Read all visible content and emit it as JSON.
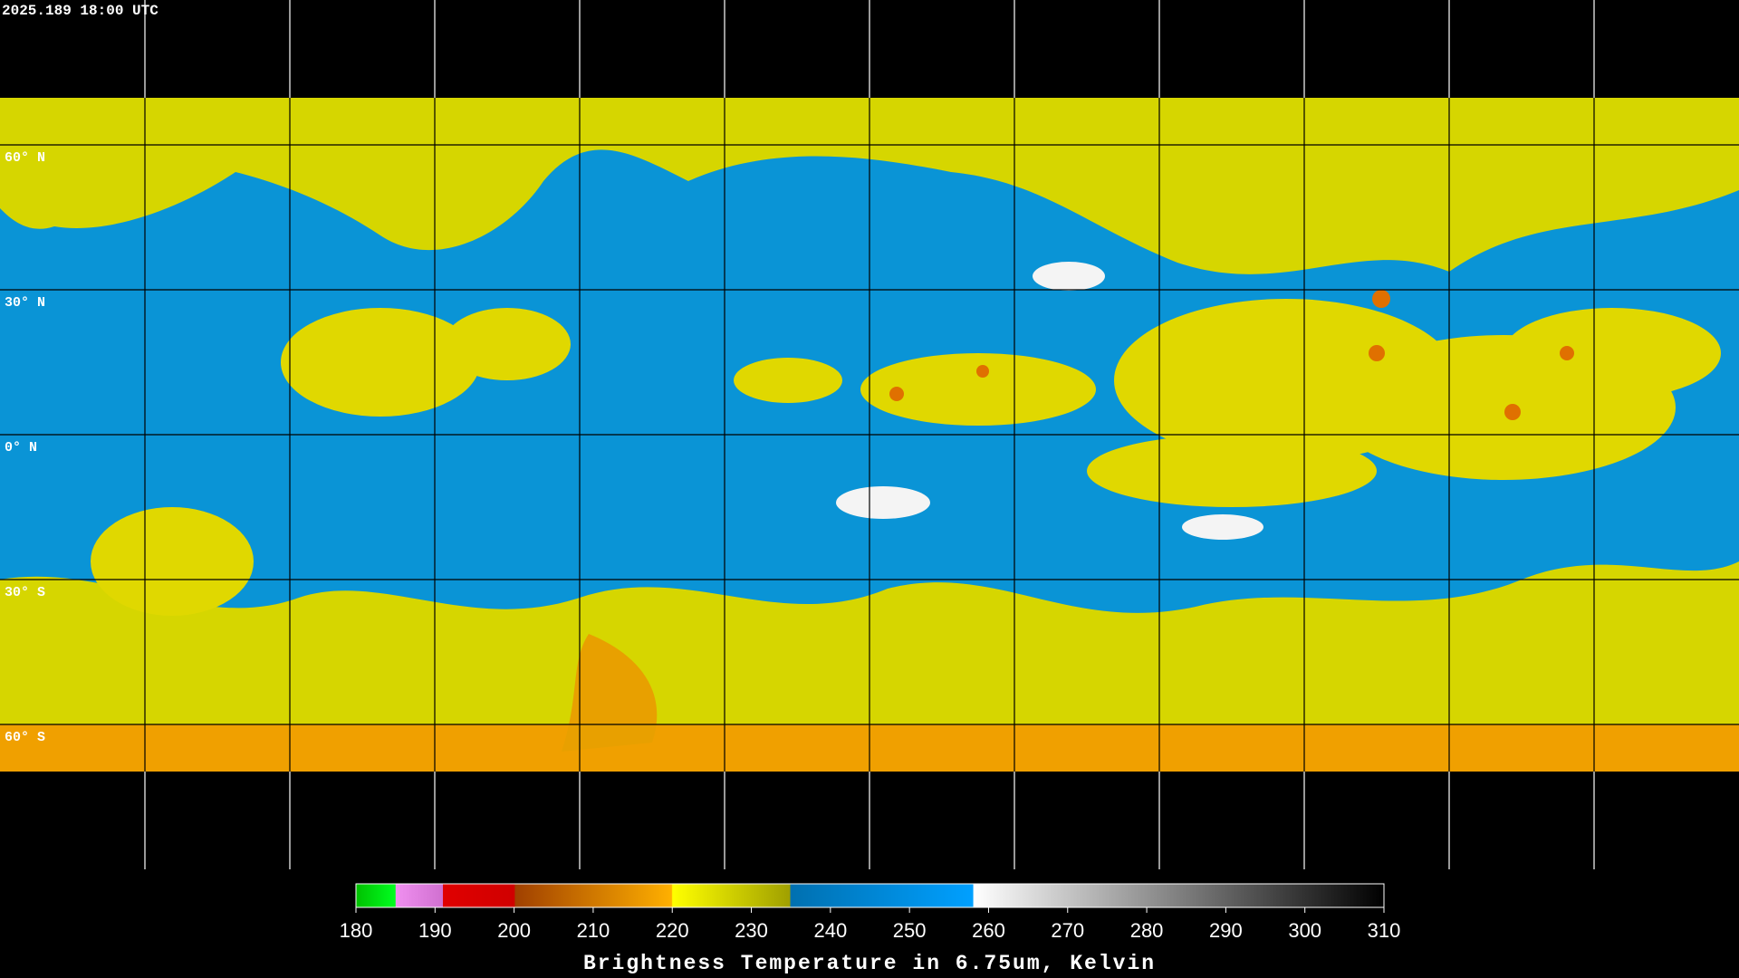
{
  "header": {
    "timestamp": "2025.189 18:00 UTC"
  },
  "map": {
    "latitudes": [
      {
        "value": 60,
        "label": "60° N"
      },
      {
        "value": 30,
        "label": "30° N"
      },
      {
        "value": 0,
        "label": "0° N"
      },
      {
        "value": -30,
        "label": "30° S"
      },
      {
        "value": -60,
        "label": "60° S"
      }
    ]
  },
  "colorbar": {
    "ticks": [
      180,
      190,
      200,
      210,
      220,
      230,
      240,
      250,
      260,
      270,
      280,
      290,
      300,
      310
    ],
    "title": "Brightness Temperature in 6.75um, Kelvin"
  }
}
